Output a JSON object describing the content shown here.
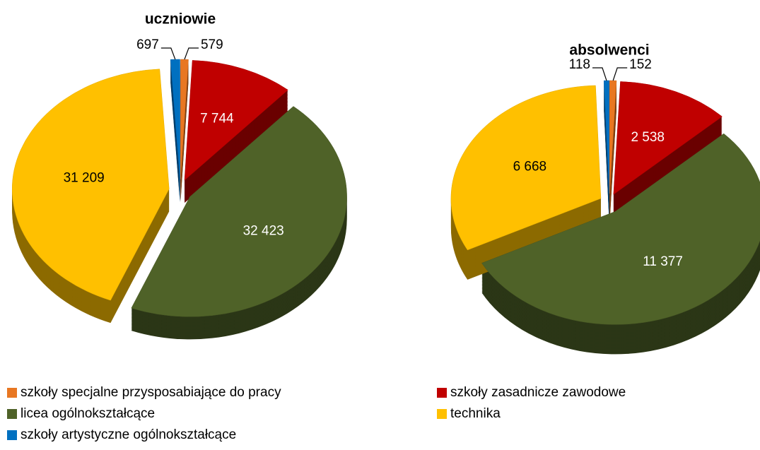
{
  "chart_data": [
    {
      "type": "pie",
      "title": "uczniowie",
      "values": [
        579,
        7744,
        32423,
        31209,
        697
      ],
      "value_labels": [
        "579",
        "7 744",
        "32 423",
        "31 209",
        "697"
      ]
    },
    {
      "type": "pie",
      "title": "absolwenci",
      "values": [
        152,
        2538,
        11377,
        6668,
        118
      ],
      "value_labels": [
        "152",
        "2 538",
        "11 377",
        "6 668",
        "118"
      ]
    }
  ],
  "legend": {
    "categories": [
      "szkoły specjalne przysposabiające do pracy",
      "szkoły zasadnicze zawodowe",
      "licea ogólnokształcące",
      "technika",
      "szkoły artystyczne ogólnokształcące"
    ],
    "colors": [
      "#e87722",
      "#c00000",
      "#4f6228",
      "#ffc000",
      "#0070c0"
    ]
  }
}
